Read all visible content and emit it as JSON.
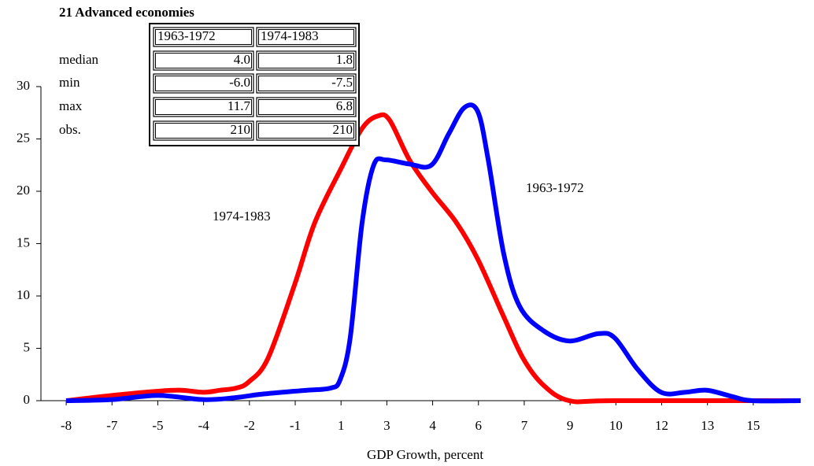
{
  "chart_data": {
    "type": "line",
    "title": "21 Advanced economies",
    "x_label": "GDP Growth, percent",
    "annotations": [
      "1974-1983",
      "1963-1972"
    ],
    "series": [
      {
        "name": "1974-1983",
        "color": "#ff0000",
        "x": [
          -8,
          -6.5,
          -5,
          -4.24,
          -3.5,
          -2.95,
          -2.43,
          -2.02,
          -1.4,
          -0.53,
          0.14,
          0.97,
          1.69,
          2.21,
          2.59,
          3.24,
          3.96,
          4.78,
          5.48,
          6.33,
          6.97,
          7.62,
          8.47,
          9.96,
          16.05
        ],
        "values": [
          0,
          0.5,
          0.9,
          1.0,
          0.8,
          1.0,
          1.2,
          1.8,
          4,
          11,
          17,
          22,
          26,
          27.2,
          26.8,
          23,
          20,
          17,
          13.5,
          8,
          4,
          1.5,
          0,
          0,
          0
        ]
      },
      {
        "name": "1963-1972",
        "color": "#0000ff",
        "x": [
          -8,
          -6.5,
          -5,
          -3.5,
          -2.43,
          -1.66,
          -0.53,
          -0.11,
          0.66,
          0.97,
          1.3,
          1.69,
          2.07,
          2.46,
          3.24,
          3.96,
          4.53,
          5.04,
          5.48,
          5.82,
          6.33,
          6.85,
          7.62,
          8.47,
          9.42,
          9.96,
          10.71,
          11.48,
          12.26,
          12.98,
          13.8,
          14.47,
          16.05
        ],
        "values": [
          0,
          0.1,
          0.5,
          0.1,
          0.3,
          0.6,
          0.9,
          1.0,
          1.2,
          2,
          6,
          17,
          22.5,
          23,
          22.6,
          22.5,
          25.5,
          28,
          27.6,
          23,
          14,
          9,
          6.7,
          5.7,
          6.4,
          6.0,
          3,
          0.8,
          0.8,
          1.0,
          0.4,
          0,
          0
        ]
      }
    ],
    "xlim": [
      -8.75,
      16.05
    ],
    "xticks": [
      -8,
      {
        "value": -6.5,
        "label": "-7"
      },
      -5,
      {
        "value": -3.5,
        "label": "-4"
      },
      -2,
      {
        "value": -0.5,
        "label": "-1"
      },
      1,
      {
        "value": 2.5,
        "label": "3"
      },
      4,
      {
        "value": 5.5,
        "label": "6"
      },
      7,
      {
        "value": 8.5,
        "label": "9"
      },
      10,
      {
        "value": 11.5,
        "label": "12"
      },
      13,
      {
        "value": 14.5,
        "label": "15"
      }
    ],
    "ylim": [
      0,
      30
    ],
    "yticks": [
      0,
      5,
      10,
      15,
      20,
      25,
      30
    ],
    "grid": false,
    "stats_table": {
      "columns": [
        "1963-1972",
        "1974-1983"
      ],
      "rows": [
        [
          "median",
          "4.0",
          "1.8"
        ],
        [
          "min",
          "-6.0",
          "-7.5"
        ],
        [
          "max",
          "11.7",
          "6.8"
        ],
        [
          "obs.",
          "210",
          "210"
        ]
      ]
    }
  }
}
